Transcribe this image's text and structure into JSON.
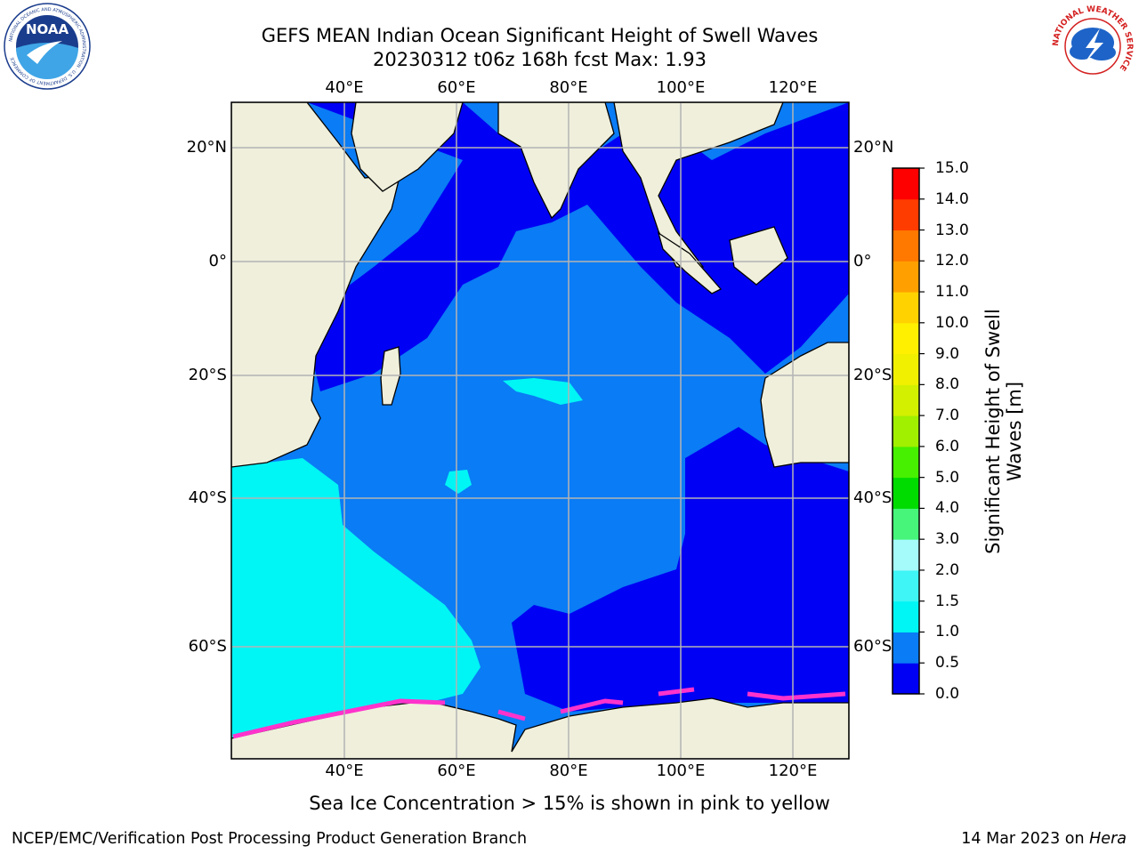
{
  "title": {
    "line1": "GEFS MEAN Indian Ocean Significant Height of Swell Waves",
    "line2": "20230312 t06z 168h fcst   Max: 1.93"
  },
  "map": {
    "longitude_ticks": [
      "40°E",
      "60°E",
      "80°E",
      "100°E",
      "120°E"
    ],
    "latitude_ticks": [
      "20°N",
      "0°",
      "20°S",
      "40°S",
      "60°S"
    ],
    "colors": {
      "land": "#efefdc",
      "ocean_low": "#0000f5",
      "ocean_mid": "#0a7cf5",
      "ocean_high": "#00f5f5",
      "ice_pink": "#ff33cc",
      "ice_yellow": "#ffee00",
      "grid": "#b4b4b4"
    }
  },
  "colorbar": {
    "title": "Significant Height of Swell Waves [m]",
    "tick_labels": [
      "0.0",
      "0.5",
      "1.0",
      "1.5",
      "2.0",
      "3.0",
      "4.0",
      "5.0",
      "6.0",
      "7.0",
      "8.0",
      "9.0",
      "10.0",
      "11.0",
      "12.0",
      "13.0",
      "14.0",
      "15.0"
    ],
    "colors": [
      "#0000f5",
      "#0a7cf5",
      "#00f5f5",
      "#3ff5f5",
      "#a5fafa",
      "#46f57a",
      "#00dc00",
      "#46f000",
      "#a0f000",
      "#d2f000",
      "#f0f000",
      "#fff000",
      "#ffd200",
      "#ffa000",
      "#ff7800",
      "#ff3c00",
      "#ff0000"
    ]
  },
  "footer": {
    "note": "Sea Ice Concentration > 15% is shown in pink to yellow",
    "left": "NCEP/EMC/Verification Post Processing Product Generation Branch",
    "right_prefix": "14 Mar 2023 on ",
    "right_machine": "Hera"
  },
  "logos": {
    "noaa_text": "NOAA",
    "noaa_ring": "NATIONAL OCEANIC AND ATMOSPHERIC ADMINISTRATION · U.S. DEPARTMENT OF COMMERCE",
    "nws_ring": "NATIONAL WEATHER SERVICE"
  }
}
